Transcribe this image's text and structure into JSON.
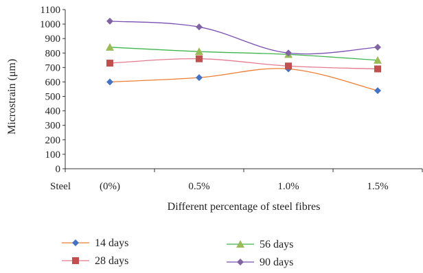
{
  "chart_data": {
    "type": "line",
    "title": "",
    "xlabel": "Different percentage of steel fibres",
    "ylabel": "Microstrain (μm)",
    "ylim": [
      0,
      1100
    ],
    "yticks": [
      0,
      100,
      200,
      300,
      400,
      500,
      600,
      700,
      800,
      900,
      1000,
      1100
    ],
    "x_prefix_label": "Steel",
    "categories": [
      "(0%)",
      "0.5%",
      "1.0%",
      "1.5%"
    ],
    "grid": false,
    "legend_position": "bottom",
    "series": [
      {
        "name": "14 days",
        "values": [
          600,
          630,
          690,
          540
        ],
        "color": "#4472C4",
        "marker": "diamond"
      },
      {
        "name": "28 days",
        "values": [
          730,
          760,
          710,
          690
        ],
        "color": "#C0504D",
        "marker": "square"
      },
      {
        "name": "56 days",
        "values": [
          840,
          810,
          790,
          750
        ],
        "color": "#9BBB59",
        "marker": "triangle"
      },
      {
        "name": "90 days",
        "values": [
          1020,
          980,
          800,
          840
        ],
        "color": "#8064A2",
        "marker": "diamond"
      }
    ],
    "line_colors": [
      "#ED7D31",
      "#E57A8E",
      "#3DB54A",
      "#7A4FB3"
    ]
  }
}
